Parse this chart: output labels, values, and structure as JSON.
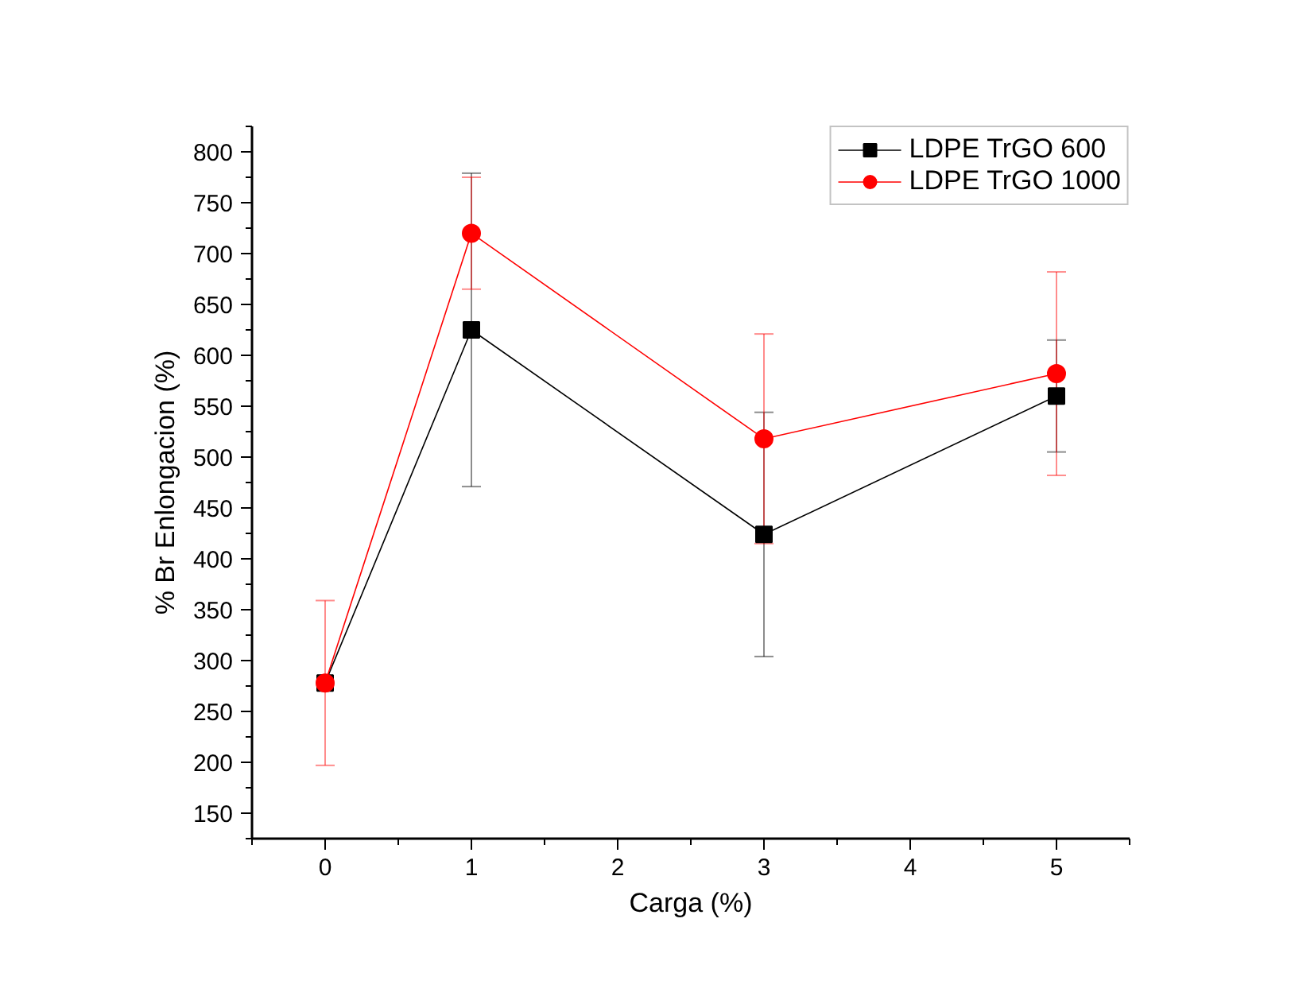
{
  "chart_data": {
    "type": "line",
    "xlabel": "Carga (%)",
    "ylabel": "% Br Enlongacion (%)",
    "x": [
      0,
      1,
      3,
      5
    ],
    "xlim": [
      -0.5,
      5.5
    ],
    "xticks": [
      0,
      1,
      2,
      3,
      4,
      5
    ],
    "ylim": [
      125,
      825
    ],
    "yticks": [
      150,
      200,
      250,
      300,
      350,
      400,
      450,
      500,
      550,
      600,
      650,
      700,
      750,
      800
    ],
    "series": [
      {
        "name": "LDPE TrGO 600",
        "color": "#000000",
        "marker": "square",
        "values": [
          278,
          625,
          424,
          560
        ],
        "errors": [
          null,
          154,
          120,
          55
        ]
      },
      {
        "name": "LDPE TrGO 1000",
        "color": "#ff0000",
        "marker": "circle",
        "values": [
          278,
          720,
          518,
          582
        ],
        "errors": [
          81,
          55,
          103,
          100
        ]
      }
    ],
    "grid": false,
    "legend": "top right",
    "line_style": "solid"
  }
}
